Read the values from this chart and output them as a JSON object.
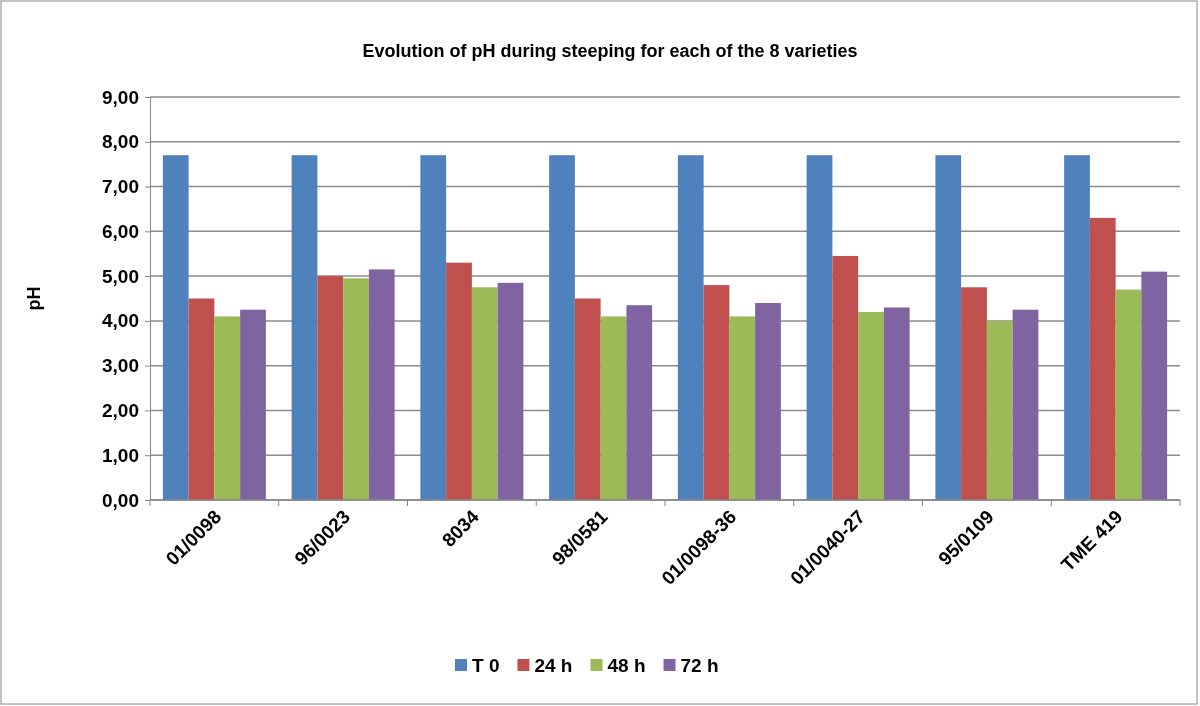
{
  "chart_data": {
    "type": "bar",
    "title": "Evolution of pH during steeping for each of the 8 varieties",
    "ylabel": "pH",
    "categories": [
      "01/0098",
      "96/0023",
      "8034",
      "98/0581",
      "01/0098-36",
      "01/0040-27",
      "95/0109",
      "TME 419"
    ],
    "series": [
      {
        "name": "T 0",
        "color": "#4f81bd",
        "values": [
          7.7,
          7.7,
          7.7,
          7.7,
          7.7,
          7.7,
          7.7,
          7.7
        ]
      },
      {
        "name": "24 h",
        "color": "#c0504d",
        "values": [
          4.5,
          5.0,
          5.3,
          4.5,
          4.8,
          5.45,
          4.75,
          6.3
        ]
      },
      {
        "name": "48 h",
        "color": "#9bbb59",
        "values": [
          4.1,
          4.95,
          4.75,
          4.1,
          4.1,
          4.2,
          4.0,
          4.7
        ]
      },
      {
        "name": "72 h",
        "color": "#8064a2",
        "values": [
          4.25,
          5.15,
          4.85,
          4.35,
          4.4,
          4.3,
          4.25,
          5.1
        ]
      }
    ],
    "ylim": [
      0,
      9
    ],
    "yticks": [
      {
        "value": 0,
        "label": "0,00"
      },
      {
        "value": 1,
        "label": "1,00"
      },
      {
        "value": 2,
        "label": "2,00"
      },
      {
        "value": 3,
        "label": "3,00"
      },
      {
        "value": 4,
        "label": "4,00"
      },
      {
        "value": 5,
        "label": "5,00"
      },
      {
        "value": 6,
        "label": "6,00"
      },
      {
        "value": 7,
        "label": "7,00"
      },
      {
        "value": 8,
        "label": "8,00"
      },
      {
        "value": 9,
        "label": "9,00"
      }
    ],
    "grid": "y",
    "legend": "bottom"
  }
}
